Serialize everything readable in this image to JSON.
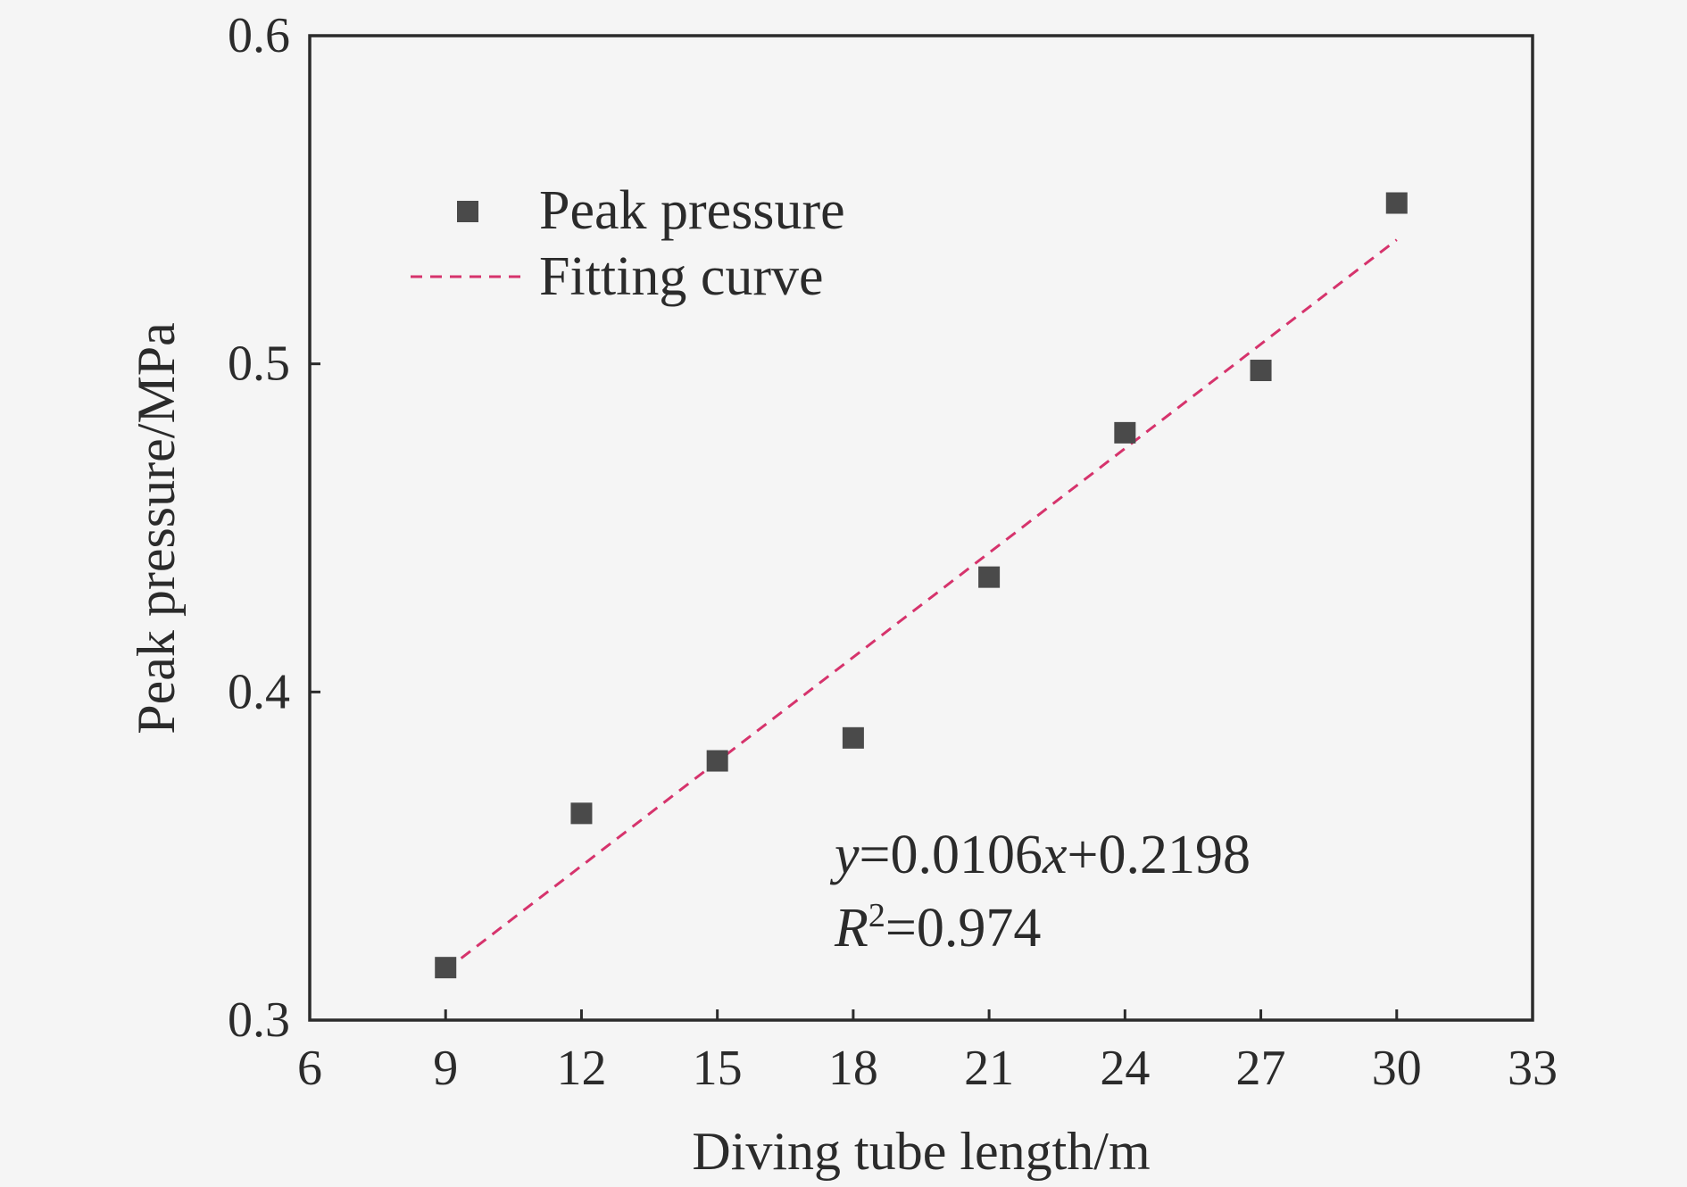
{
  "chart_data": {
    "type": "scatter",
    "xlabel": "Diving tube length/m",
    "ylabel": "Peak pressure/MPa",
    "xlim": [
      6,
      33
    ],
    "ylim": [
      0.3,
      0.6
    ],
    "x_ticks": [
      "6",
      "9",
      "12",
      "15",
      "18",
      "21",
      "24",
      "27",
      "30",
      "33"
    ],
    "y_ticks": [
      "0.3",
      "0.4",
      "0.5",
      "0.6"
    ],
    "series": [
      {
        "name": "Peak pressure",
        "type": "scatter",
        "color": "#4a4a4a",
        "marker": "square",
        "x": [
          9,
          12,
          15,
          18,
          21,
          24,
          27,
          30
        ],
        "y": [
          0.316,
          0.363,
          0.379,
          0.386,
          0.435,
          0.479,
          0.498,
          0.549
        ]
      },
      {
        "name": "Fitting curve",
        "type": "line",
        "style": "dashed",
        "color": "#d6336c",
        "x": [
          9,
          30
        ],
        "y": [
          0.3152,
          0.5378
        ]
      }
    ],
    "annotation": {
      "equation_y": "y",
      "equation_eq": "=0.0106",
      "equation_x": "x",
      "equation_rest": "+0.2198",
      "r2_R": "R",
      "r2_sup": "2",
      "r2_rest": "=0.974"
    },
    "legend_position": "top-left",
    "grid": false,
    "frame": "box"
  }
}
